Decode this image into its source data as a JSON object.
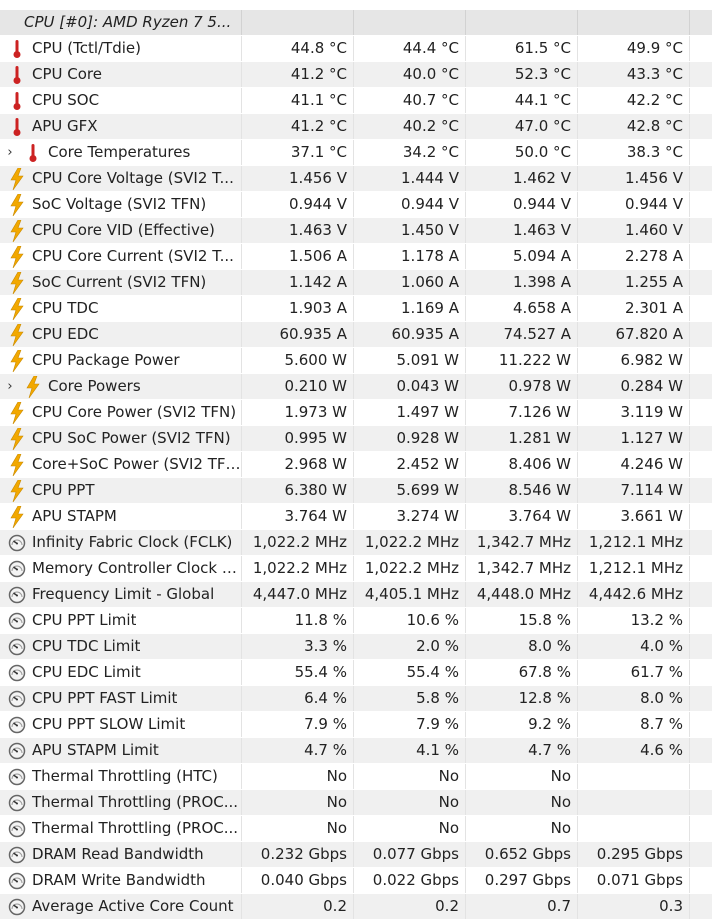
{
  "group": {
    "title": "CPU [#0]: AMD Ryzen 7 5..."
  },
  "rows": [
    {
      "icon": "thermometer-icon",
      "label": "CPU (Tctl/Tdie)",
      "v": [
        "44.8 °C",
        "44.4 °C",
        "61.5 °C",
        "49.9 °C"
      ]
    },
    {
      "icon": "thermometer-icon",
      "label": "CPU Core",
      "v": [
        "41.2 °C",
        "40.0 °C",
        "52.3 °C",
        "43.3 °C"
      ]
    },
    {
      "icon": "thermometer-icon",
      "label": "CPU SOC",
      "v": [
        "41.1 °C",
        "40.7 °C",
        "44.1 °C",
        "42.2 °C"
      ]
    },
    {
      "icon": "thermometer-icon",
      "label": "APU GFX",
      "v": [
        "41.2 °C",
        "40.2 °C",
        "47.0 °C",
        "42.8 °C"
      ]
    },
    {
      "icon": "thermometer-icon",
      "label": "Core Temperatures",
      "expand": true,
      "v": [
        "37.1 °C",
        "34.2 °C",
        "50.0 °C",
        "38.3 °C"
      ]
    },
    {
      "icon": "lightning-bolt-icon",
      "label": "CPU Core Voltage (SVI2 T...",
      "v": [
        "1.456 V",
        "1.444 V",
        "1.462 V",
        "1.456 V"
      ]
    },
    {
      "icon": "lightning-bolt-icon",
      "label": "SoC Voltage (SVI2 TFN)",
      "v": [
        "0.944 V",
        "0.944 V",
        "0.944 V",
        "0.944 V"
      ]
    },
    {
      "icon": "lightning-bolt-icon",
      "label": "CPU Core VID (Effective)",
      "v": [
        "1.463 V",
        "1.450 V",
        "1.463 V",
        "1.460 V"
      ]
    },
    {
      "icon": "lightning-bolt-icon",
      "label": "CPU Core Current (SVI2 T...",
      "v": [
        "1.506 A",
        "1.178 A",
        "5.094 A",
        "2.278 A"
      ]
    },
    {
      "icon": "lightning-bolt-icon",
      "label": "SoC Current (SVI2 TFN)",
      "v": [
        "1.142 A",
        "1.060 A",
        "1.398 A",
        "1.255 A"
      ]
    },
    {
      "icon": "lightning-bolt-icon",
      "label": "CPU TDC",
      "v": [
        "1.903 A",
        "1.169 A",
        "4.658 A",
        "2.301 A"
      ]
    },
    {
      "icon": "lightning-bolt-icon",
      "label": "CPU EDC",
      "v": [
        "60.935 A",
        "60.935 A",
        "74.527 A",
        "67.820 A"
      ]
    },
    {
      "icon": "lightning-bolt-icon",
      "label": "CPU Package Power",
      "v": [
        "5.600 W",
        "5.091 W",
        "11.222 W",
        "6.982 W"
      ]
    },
    {
      "icon": "lightning-bolt-icon",
      "label": "Core Powers",
      "expand": true,
      "v": [
        "0.210 W",
        "0.043 W",
        "0.978 W",
        "0.284 W"
      ]
    },
    {
      "icon": "lightning-bolt-icon",
      "label": "CPU Core Power (SVI2 TFN)",
      "v": [
        "1.973 W",
        "1.497 W",
        "7.126 W",
        "3.119 W"
      ]
    },
    {
      "icon": "lightning-bolt-icon",
      "label": "CPU SoC Power (SVI2 TFN)",
      "v": [
        "0.995 W",
        "0.928 W",
        "1.281 W",
        "1.127 W"
      ]
    },
    {
      "icon": "lightning-bolt-icon",
      "label": "Core+SoC Power (SVI2 TFN)",
      "v": [
        "2.968 W",
        "2.452 W",
        "8.406 W",
        "4.246 W"
      ]
    },
    {
      "icon": "lightning-bolt-icon",
      "label": "CPU PPT",
      "v": [
        "6.380 W",
        "5.699 W",
        "8.546 W",
        "7.114 W"
      ]
    },
    {
      "icon": "lightning-bolt-icon",
      "label": "APU STAPM",
      "v": [
        "3.764 W",
        "3.274 W",
        "3.764 W",
        "3.661 W"
      ]
    },
    {
      "icon": "clock-gauge-icon",
      "label": "Infinity Fabric Clock (FCLK)",
      "v": [
        "1,022.2 MHz",
        "1,022.2 MHz",
        "1,342.7 MHz",
        "1,212.1 MHz"
      ]
    },
    {
      "icon": "clock-gauge-icon",
      "label": "Memory Controller Clock (...",
      "v": [
        "1,022.2 MHz",
        "1,022.2 MHz",
        "1,342.7 MHz",
        "1,212.1 MHz"
      ]
    },
    {
      "icon": "clock-gauge-icon",
      "label": "Frequency Limit - Global",
      "v": [
        "4,447.0 MHz",
        "4,405.1 MHz",
        "4,448.0 MHz",
        "4,442.6 MHz"
      ]
    },
    {
      "icon": "clock-gauge-icon",
      "label": "CPU PPT Limit",
      "v": [
        "11.8 %",
        "10.6 %",
        "15.8 %",
        "13.2 %"
      ]
    },
    {
      "icon": "clock-gauge-icon",
      "label": "CPU TDC Limit",
      "v": [
        "3.3 %",
        "2.0 %",
        "8.0 %",
        "4.0 %"
      ]
    },
    {
      "icon": "clock-gauge-icon",
      "label": "CPU EDC Limit",
      "v": [
        "55.4 %",
        "55.4 %",
        "67.8 %",
        "61.7 %"
      ]
    },
    {
      "icon": "clock-gauge-icon",
      "label": "CPU PPT FAST Limit",
      "v": [
        "6.4 %",
        "5.8 %",
        "12.8 %",
        "8.0 %"
      ]
    },
    {
      "icon": "clock-gauge-icon",
      "label": "CPU PPT SLOW Limit",
      "v": [
        "7.9 %",
        "7.9 %",
        "9.2 %",
        "8.7 %"
      ]
    },
    {
      "icon": "clock-gauge-icon",
      "label": "APU STAPM Limit",
      "v": [
        "4.7 %",
        "4.1 %",
        "4.7 %",
        "4.6 %"
      ]
    },
    {
      "icon": "clock-gauge-icon",
      "label": "Thermal Throttling (HTC)",
      "v": [
        "No",
        "No",
        "No",
        ""
      ]
    },
    {
      "icon": "clock-gauge-icon",
      "label": "Thermal Throttling (PROC...",
      "v": [
        "No",
        "No",
        "No",
        ""
      ]
    },
    {
      "icon": "clock-gauge-icon",
      "label": "Thermal Throttling (PROC...",
      "v": [
        "No",
        "No",
        "No",
        ""
      ]
    },
    {
      "icon": "clock-gauge-icon",
      "label": "DRAM Read Bandwidth",
      "v": [
        "0.232 Gbps",
        "0.077 Gbps",
        "0.652 Gbps",
        "0.295 Gbps"
      ]
    },
    {
      "icon": "clock-gauge-icon",
      "label": "DRAM Write Bandwidth",
      "v": [
        "0.040 Gbps",
        "0.022 Gbps",
        "0.297 Gbps",
        "0.071 Gbps"
      ]
    },
    {
      "icon": "clock-gauge-icon",
      "label": "Average Active Core Count",
      "v": [
        "0.2",
        "0.2",
        "0.7",
        "0.3"
      ]
    }
  ],
  "colors": {
    "thermometer": "#cc2222",
    "lightning": "#f2a800",
    "gauge": "#666666",
    "row_alt": "#f0f0f0",
    "group_bg": "#e6e6e6"
  }
}
